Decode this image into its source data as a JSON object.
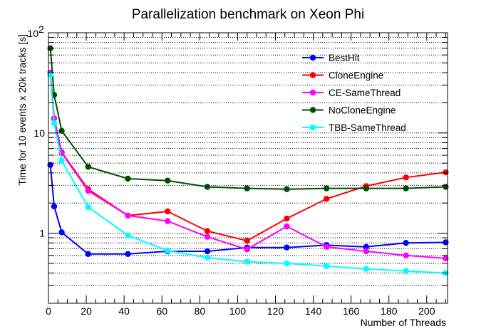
{
  "chart_data": {
    "type": "line",
    "title": "Parallelization benchmark on Xeon Phi",
    "xlabel": "Number of Threads",
    "ylabel": "Time for 10 events x 20k tracks [s]",
    "xlim": [
      0,
      211
    ],
    "ylim": [
      0.2,
      100
    ],
    "yscale": "log",
    "x_ticks": [
      0,
      20,
      40,
      60,
      80,
      100,
      120,
      140,
      160,
      180,
      200
    ],
    "y_tick_labels": [
      {
        "value": 1,
        "label": "1"
      },
      {
        "value": 10,
        "label": "10"
      },
      {
        "value": 100,
        "label": "10",
        "exponent": "2"
      }
    ],
    "grid": "horizontal dotted",
    "legend_position": "top-right",
    "series": [
      {
        "name": "BestHit",
        "color": "#0000ff",
        "x": [
          1,
          3,
          7,
          21,
          42,
          63,
          84,
          105,
          126,
          147,
          168,
          189,
          210
        ],
        "y": [
          4.8,
          1.85,
          1.02,
          0.62,
          0.62,
          0.66,
          0.66,
          0.72,
          0.72,
          0.76,
          0.73,
          0.8,
          0.81
        ]
      },
      {
        "name": "CloneEngine",
        "color": "#ff0000",
        "x": [
          1,
          3,
          7,
          21,
          42,
          63,
          84,
          105,
          126,
          147,
          168,
          189,
          210
        ],
        "y": [
          40,
          14,
          6.4,
          2.75,
          1.5,
          1.65,
          1.05,
          0.84,
          1.4,
          2.2,
          2.95,
          3.6,
          4.05
        ]
      },
      {
        "name": "CE-SameThread",
        "color": "#ff00ff",
        "x": [
          1,
          3,
          7,
          21,
          42,
          63,
          84,
          105,
          126,
          147,
          168,
          189,
          210
        ],
        "y": [
          40,
          14,
          6.3,
          2.65,
          1.5,
          1.32,
          0.92,
          0.69,
          1.17,
          0.73,
          0.66,
          0.6,
          0.56
        ]
      },
      {
        "name": "NoCloneEngine",
        "color": "#004d00",
        "x": [
          1,
          3,
          7,
          21,
          42,
          63,
          84,
          105,
          126,
          147,
          168,
          189,
          210
        ],
        "y": [
          70,
          24,
          10.5,
          4.6,
          3.5,
          3.35,
          2.9,
          2.8,
          2.75,
          2.8,
          2.8,
          2.8,
          2.9
        ]
      },
      {
        "name": "TBB-SameThread",
        "color": "#00ffff",
        "x": [
          1,
          3,
          7,
          21,
          42,
          63,
          84,
          105,
          126,
          147,
          168,
          189,
          210
        ],
        "y": [
          38,
          12.5,
          5.3,
          1.82,
          0.95,
          0.67,
          0.57,
          0.52,
          0.5,
          0.47,
          0.44,
          0.42,
          0.4
        ]
      }
    ]
  }
}
